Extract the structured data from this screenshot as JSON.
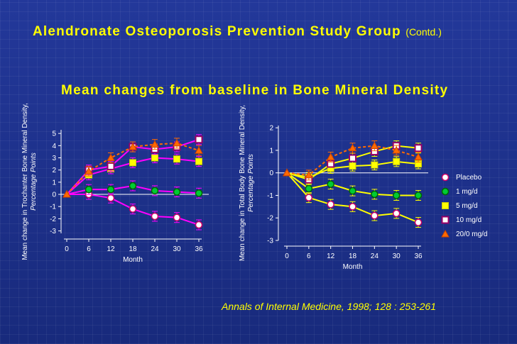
{
  "slide": {
    "title": "Alendronate Osteoporosis Prevention Study Group",
    "title_suffix": "(Contd.)",
    "subtitle": "Mean changes from baseline in Bone Mineral Density",
    "citation": "Annals of Internal Medicine, 1998; 128   : 253-261"
  },
  "colors": {
    "placebo": "#ff00ff",
    "mg1": "#ff00ff",
    "mg5": "#ff00ff",
    "mg10": "#ff00ff",
    "mg20": "#ff6a00",
    "right_lines": "#ffff00",
    "highlight": "#ffff00"
  },
  "legend": [
    {
      "key": "placebo",
      "label": "Placebo",
      "marker": "circle",
      "fill": "#ffffff",
      "stroke": "#cc0066"
    },
    {
      "key": "mg1",
      "label": "1 mg/d",
      "marker": "circle",
      "fill": "#00cc33",
      "stroke": "#006600"
    },
    {
      "key": "mg5",
      "label": "5 mg/d",
      "marker": "square",
      "fill": "#ffff00",
      "stroke": "#cccc00"
    },
    {
      "key": "mg10",
      "label": "10 mg/d",
      "marker": "square-hollow",
      "fill": "#ffffff",
      "stroke": "#990066"
    },
    {
      "key": "mg20",
      "label": "20/0 mg/d",
      "marker": "triangle",
      "fill": "#ff6a00",
      "stroke": "#cc4400"
    }
  ],
  "chart_data": [
    {
      "type": "line",
      "title": "",
      "xlabel": "Month",
      "ylabel": "Mean change in Trochanter Bone Mineral Density,",
      "ylabel2": "Percentage Points",
      "x": [
        0,
        6,
        12,
        18,
        24,
        30,
        36
      ],
      "xticks": [
        "0",
        "6",
        "12",
        "18",
        "24",
        "30",
        "36"
      ],
      "yticks": [
        "-3",
        "-2",
        "-1",
        "0",
        "1",
        "2",
        "3",
        "4",
        "5"
      ],
      "ylim": [
        -3.2,
        5.3
      ],
      "series": [
        {
          "name": "Placebo",
          "key": "placebo",
          "values": [
            0,
            0,
            -0.3,
            -1.2,
            -1.8,
            -1.9,
            -2.5
          ]
        },
        {
          "name": "1 mg/d",
          "key": "mg1",
          "values": [
            0,
            0.4,
            0.4,
            0.7,
            0.3,
            0.2,
            0.1
          ]
        },
        {
          "name": "5 mg/d",
          "key": "mg5",
          "values": [
            0,
            1.6,
            2.1,
            2.6,
            3.0,
            2.9,
            2.7
          ]
        },
        {
          "name": "10 mg/d",
          "key": "mg10",
          "values": [
            0,
            2.0,
            2.3,
            3.9,
            3.7,
            3.9,
            4.5
          ]
        },
        {
          "name": "20/0 mg/d",
          "key": "mg20",
          "values": [
            0,
            1.9,
            3.0,
            3.9,
            4.1,
            4.2,
            3.6
          ]
        }
      ]
    },
    {
      "type": "line",
      "title": "",
      "xlabel": "Month",
      "ylabel": "Mean change in Total Body Bone Mineral Density,",
      "ylabel2": "Percentage Points",
      "x": [
        0,
        6,
        12,
        18,
        24,
        30,
        36
      ],
      "xticks": [
        "0",
        "6",
        "12",
        "18",
        "24",
        "30",
        "36"
      ],
      "yticks": [
        "-3",
        "-2",
        "-1",
        "0",
        "1",
        "2"
      ],
      "ylim": [
        -3,
        2.1
      ],
      "series": [
        {
          "name": "Placebo",
          "key": "placebo",
          "values": [
            0,
            -1.1,
            -1.4,
            -1.5,
            -1.9,
            -1.8,
            -2.2
          ]
        },
        {
          "name": "1 mg/d",
          "key": "mg1",
          "values": [
            0,
            -0.7,
            -0.5,
            -0.8,
            -0.95,
            -1.0,
            -1.0
          ]
        },
        {
          "name": "5 mg/d",
          "key": "mg5",
          "values": [
            0,
            -0.2,
            0.2,
            0.3,
            0.35,
            0.5,
            0.4
          ]
        },
        {
          "name": "10 mg/d",
          "key": "mg10",
          "values": [
            0,
            -0.3,
            0.4,
            0.65,
            0.95,
            1.2,
            1.1
          ]
        },
        {
          "name": "20/0 mg/d",
          "key": "mg20",
          "values": [
            0,
            -0.1,
            0.7,
            1.1,
            1.2,
            1.0,
            0.7
          ]
        }
      ]
    }
  ]
}
